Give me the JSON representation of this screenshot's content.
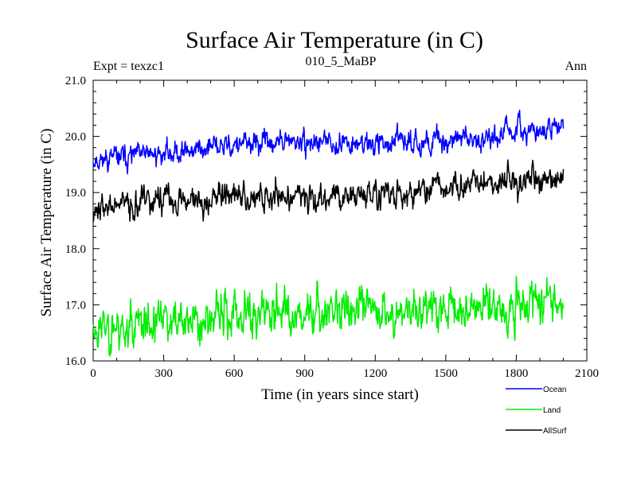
{
  "chart_data": {
    "type": "line",
    "title": "Surface Air Temperature (in C)",
    "left_caption": "Expt = texzc1",
    "center_caption": "010_5_MaBP",
    "right_caption": "Ann",
    "xlabel": "Time (in years since start)",
    "ylabel": "Surface Air Temperature (in C)",
    "xlim": [
      0,
      2100
    ],
    "ylim": [
      16.0,
      21.0
    ],
    "x_ticks": [
      0,
      300,
      600,
      900,
      1200,
      1500,
      1800,
      2100
    ],
    "x_tick_labels": [
      "0",
      "300",
      "600",
      "900",
      "1200",
      "1500",
      "1800",
      "2100"
    ],
    "y_ticks": [
      16,
      17,
      18,
      19,
      20,
      21
    ],
    "y_tick_labels": [
      "16.0",
      "17.0",
      "18.0",
      "19.0",
      "20.0",
      "21.0"
    ],
    "x_range": [
      0,
      2000
    ],
    "series": [
      {
        "name": "Ocean",
        "color": "#0000ff",
        "start": 19.65,
        "end": 20.1,
        "noise": 0.12,
        "seed": 11
      },
      {
        "name": "Land",
        "color": "#00ee00",
        "start": 16.65,
        "end": 17.1,
        "noise": 0.24,
        "seed": 23
      },
      {
        "name": "AllSurf",
        "color": "#000000",
        "start": 18.75,
        "end": 19.2,
        "noise": 0.15,
        "seed": 37
      }
    ]
  }
}
